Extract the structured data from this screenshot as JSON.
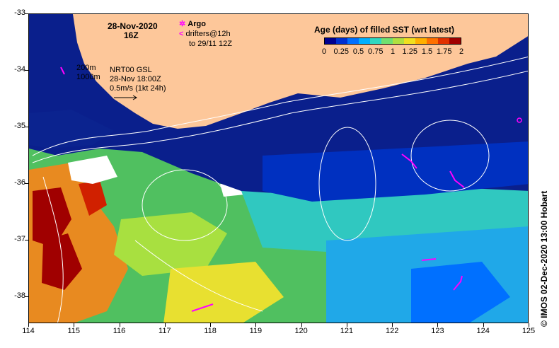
{
  "map": {
    "title_date": "28-Nov-2020",
    "title_time": "16Z",
    "argo_label": "Argo",
    "drifters_label": "drifters@12h",
    "drifters_range": "to 29/11 12Z",
    "isobath_200": "200m",
    "isobath_1000": "1000m",
    "product": "NRT00 GSL",
    "product_time": "28-Nov 18:00Z",
    "vector_scale": "0.5m/s (1kt 24h)",
    "credit": "© IMOS 02-Dec-2020 13:00 Hobart",
    "colors": {
      "land": "#fdc79a",
      "deep_navy": "#0a1f8c",
      "argo_marker": "#ff00ff",
      "drifter_track": "#ff00ff"
    }
  },
  "colorbar": {
    "title": "Age (days) of filled SST (wrt latest)",
    "ticks": [
      "0",
      "0.25",
      "0.5",
      "0.75",
      "1",
      "1.25",
      "1.5",
      "1.75",
      "2"
    ],
    "colors": [
      "#00008f",
      "#0030d0",
      "#0070ff",
      "#00b0ff",
      "#30d8c0",
      "#70e070",
      "#b0e040",
      "#f0e020",
      "#ffb000",
      "#ff7000",
      "#e03000",
      "#a00000"
    ]
  },
  "axes": {
    "x_ticks": [
      "114",
      "115",
      "116",
      "117",
      "118",
      "119",
      "120",
      "121",
      "122",
      "123",
      "124",
      "125"
    ],
    "y_ticks": [
      "-33",
      "-34",
      "-35",
      "-36",
      "-37",
      "-38"
    ]
  }
}
